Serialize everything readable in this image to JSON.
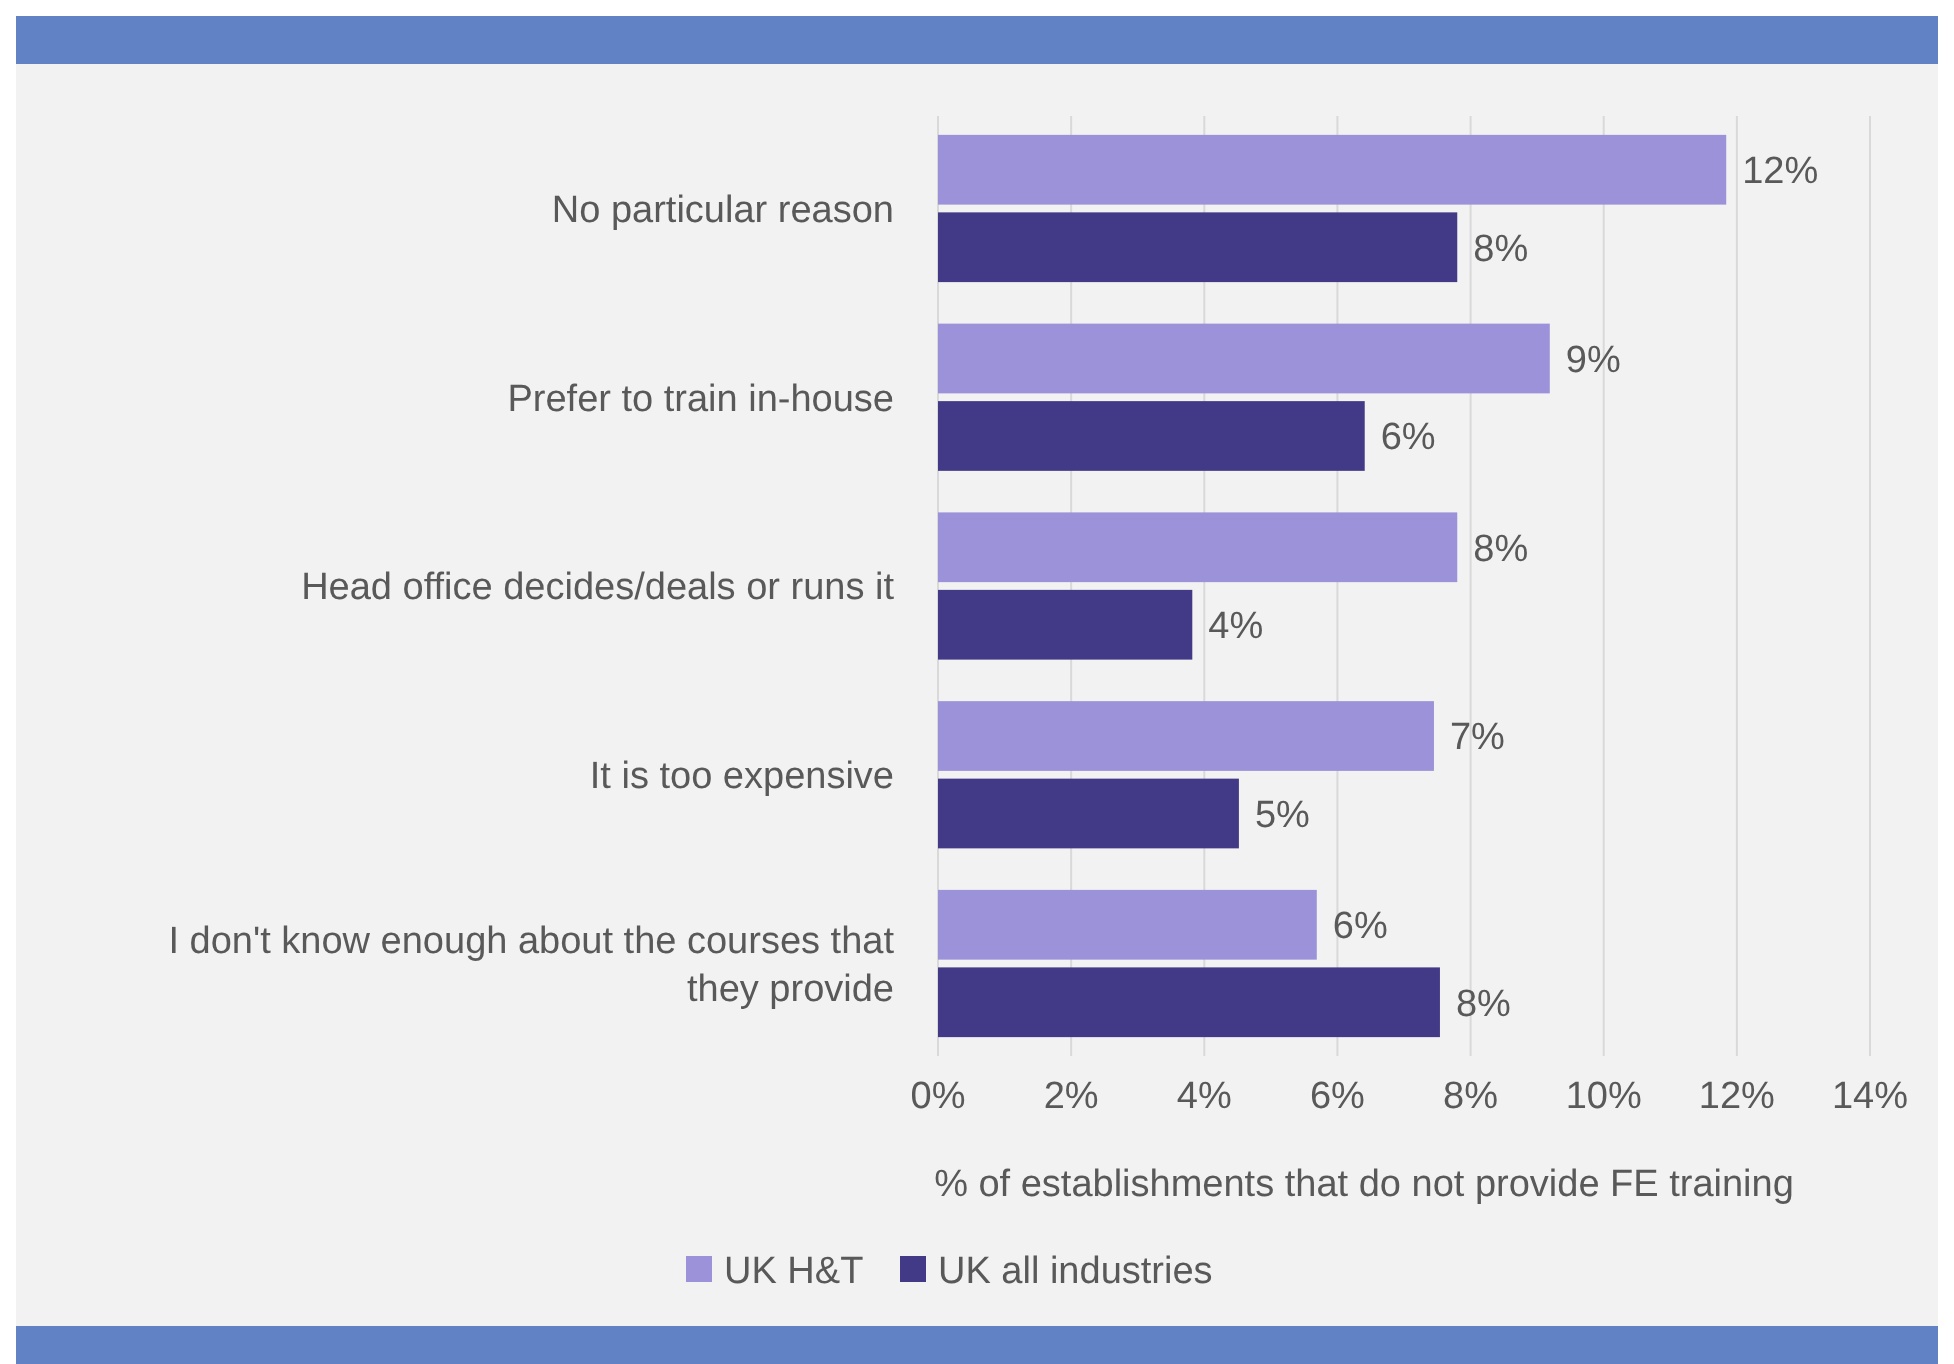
{
  "chart_data": {
    "type": "bar",
    "orientation": "horizontal",
    "xlabel": "% of establishments that do not provide FE training",
    "categories": [
      "No particular reason",
      "Prefer to train in-house",
      "Head office decides/deals or runs it",
      "It is too expensive",
      "I don't know enough about the courses that they provide"
    ],
    "series": [
      {
        "name": "UK H&T",
        "color": "#9b92da",
        "values": [
          11.84,
          9.19,
          7.8,
          7.45,
          5.69
        ],
        "value_labels": [
          "12%",
          "9%",
          "8%",
          "7%",
          "6%"
        ]
      },
      {
        "name": "UK all industries",
        "color": "#433a87",
        "values": [
          7.8,
          6.41,
          3.82,
          4.52,
          7.54
        ],
        "value_labels": [
          "8%",
          "6%",
          "4%",
          "5%",
          "8%"
        ]
      }
    ],
    "xlim": [
      0,
      14
    ],
    "xticks": [
      {
        "value": 0,
        "label": "0%"
      },
      {
        "value": 2,
        "label": "2%"
      },
      {
        "value": 4,
        "label": "4%"
      },
      {
        "value": 6,
        "label": "6%"
      },
      {
        "value": 8,
        "label": "8%"
      },
      {
        "value": 10,
        "label": "10%"
      },
      {
        "value": 12,
        "label": "12%"
      },
      {
        "value": 14,
        "label": "14%"
      }
    ],
    "grid": "x",
    "legend": "bottom left"
  }
}
